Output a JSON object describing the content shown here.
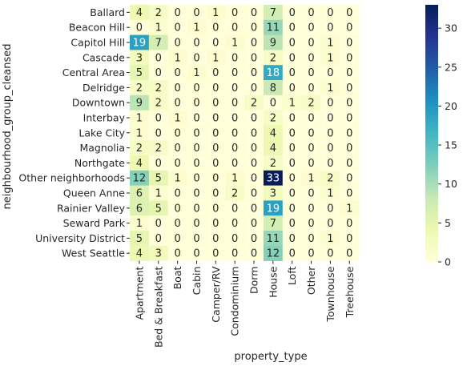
{
  "chart_data": {
    "type": "heatmap",
    "title": "",
    "xlabel": "property_type",
    "ylabel": "neighbourhood_group_cleansed",
    "x_categories": [
      "Apartment",
      "Bed & Breakfast",
      "Boat",
      "Cabin",
      "Camper/RV",
      "Condominium",
      "Dorm",
      "House",
      "Loft",
      "Other",
      "Townhouse",
      "Treehouse"
    ],
    "y_categories": [
      "Ballard",
      "Beacon Hill",
      "Capitol Hill",
      "Cascade",
      "Central Area",
      "Delridge",
      "Downtown",
      "Interbay",
      "Lake City",
      "Magnolia",
      "Northgate",
      "Other neighborhoods",
      "Queen Anne",
      "Rainier Valley",
      "Seward Park",
      "University District",
      "West Seattle"
    ],
    "values": [
      [
        4,
        2,
        0,
        0,
        1,
        0,
        0,
        7,
        0,
        0,
        0,
        0
      ],
      [
        0,
        1,
        0,
        1,
        0,
        0,
        0,
        11,
        0,
        0,
        0,
        0
      ],
      [
        19,
        7,
        0,
        0,
        0,
        1,
        0,
        9,
        0,
        0,
        1,
        0
      ],
      [
        3,
        0,
        1,
        0,
        1,
        0,
        0,
        2,
        0,
        0,
        1,
        0
      ],
      [
        5,
        0,
        0,
        1,
        0,
        0,
        0,
        18,
        0,
        0,
        0,
        0
      ],
      [
        2,
        2,
        0,
        0,
        0,
        0,
        0,
        8,
        0,
        0,
        1,
        0
      ],
      [
        9,
        2,
        0,
        0,
        0,
        0,
        2,
        0,
        1,
        2,
        0,
        0
      ],
      [
        1,
        0,
        1,
        0,
        0,
        0,
        0,
        2,
        0,
        0,
        0,
        0
      ],
      [
        1,
        0,
        0,
        0,
        0,
        0,
        0,
        4,
        0,
        0,
        0,
        0
      ],
      [
        2,
        2,
        0,
        0,
        0,
        0,
        0,
        4,
        0,
        0,
        0,
        0
      ],
      [
        4,
        0,
        0,
        0,
        0,
        0,
        0,
        2,
        0,
        0,
        0,
        0
      ],
      [
        12,
        5,
        1,
        0,
        0,
        1,
        0,
        33,
        0,
        1,
        2,
        0
      ],
      [
        6,
        1,
        0,
        0,
        0,
        2,
        0,
        3,
        0,
        0,
        1,
        0
      ],
      [
        6,
        5,
        0,
        0,
        0,
        0,
        0,
        19,
        0,
        0,
        0,
        1
      ],
      [
        1,
        0,
        0,
        0,
        0,
        0,
        0,
        7,
        0,
        0,
        0,
        0
      ],
      [
        5,
        0,
        0,
        0,
        0,
        0,
        0,
        11,
        0,
        0,
        1,
        0
      ],
      [
        4,
        3,
        0,
        0,
        0,
        0,
        0,
        12,
        0,
        0,
        0,
        0
      ]
    ],
    "colorbar": {
      "min": 0,
      "max": 33,
      "ticks": [
        0,
        5,
        10,
        15,
        20,
        25,
        30
      ],
      "colormap": "YlGnBu",
      "colors": [
        "#ffffd9",
        "#edf8b1",
        "#c7e9b4",
        "#7fcdbb",
        "#41b6c4",
        "#1d91c0",
        "#225ea8",
        "#253494",
        "#081d58"
      ]
    },
    "annotated": true
  }
}
